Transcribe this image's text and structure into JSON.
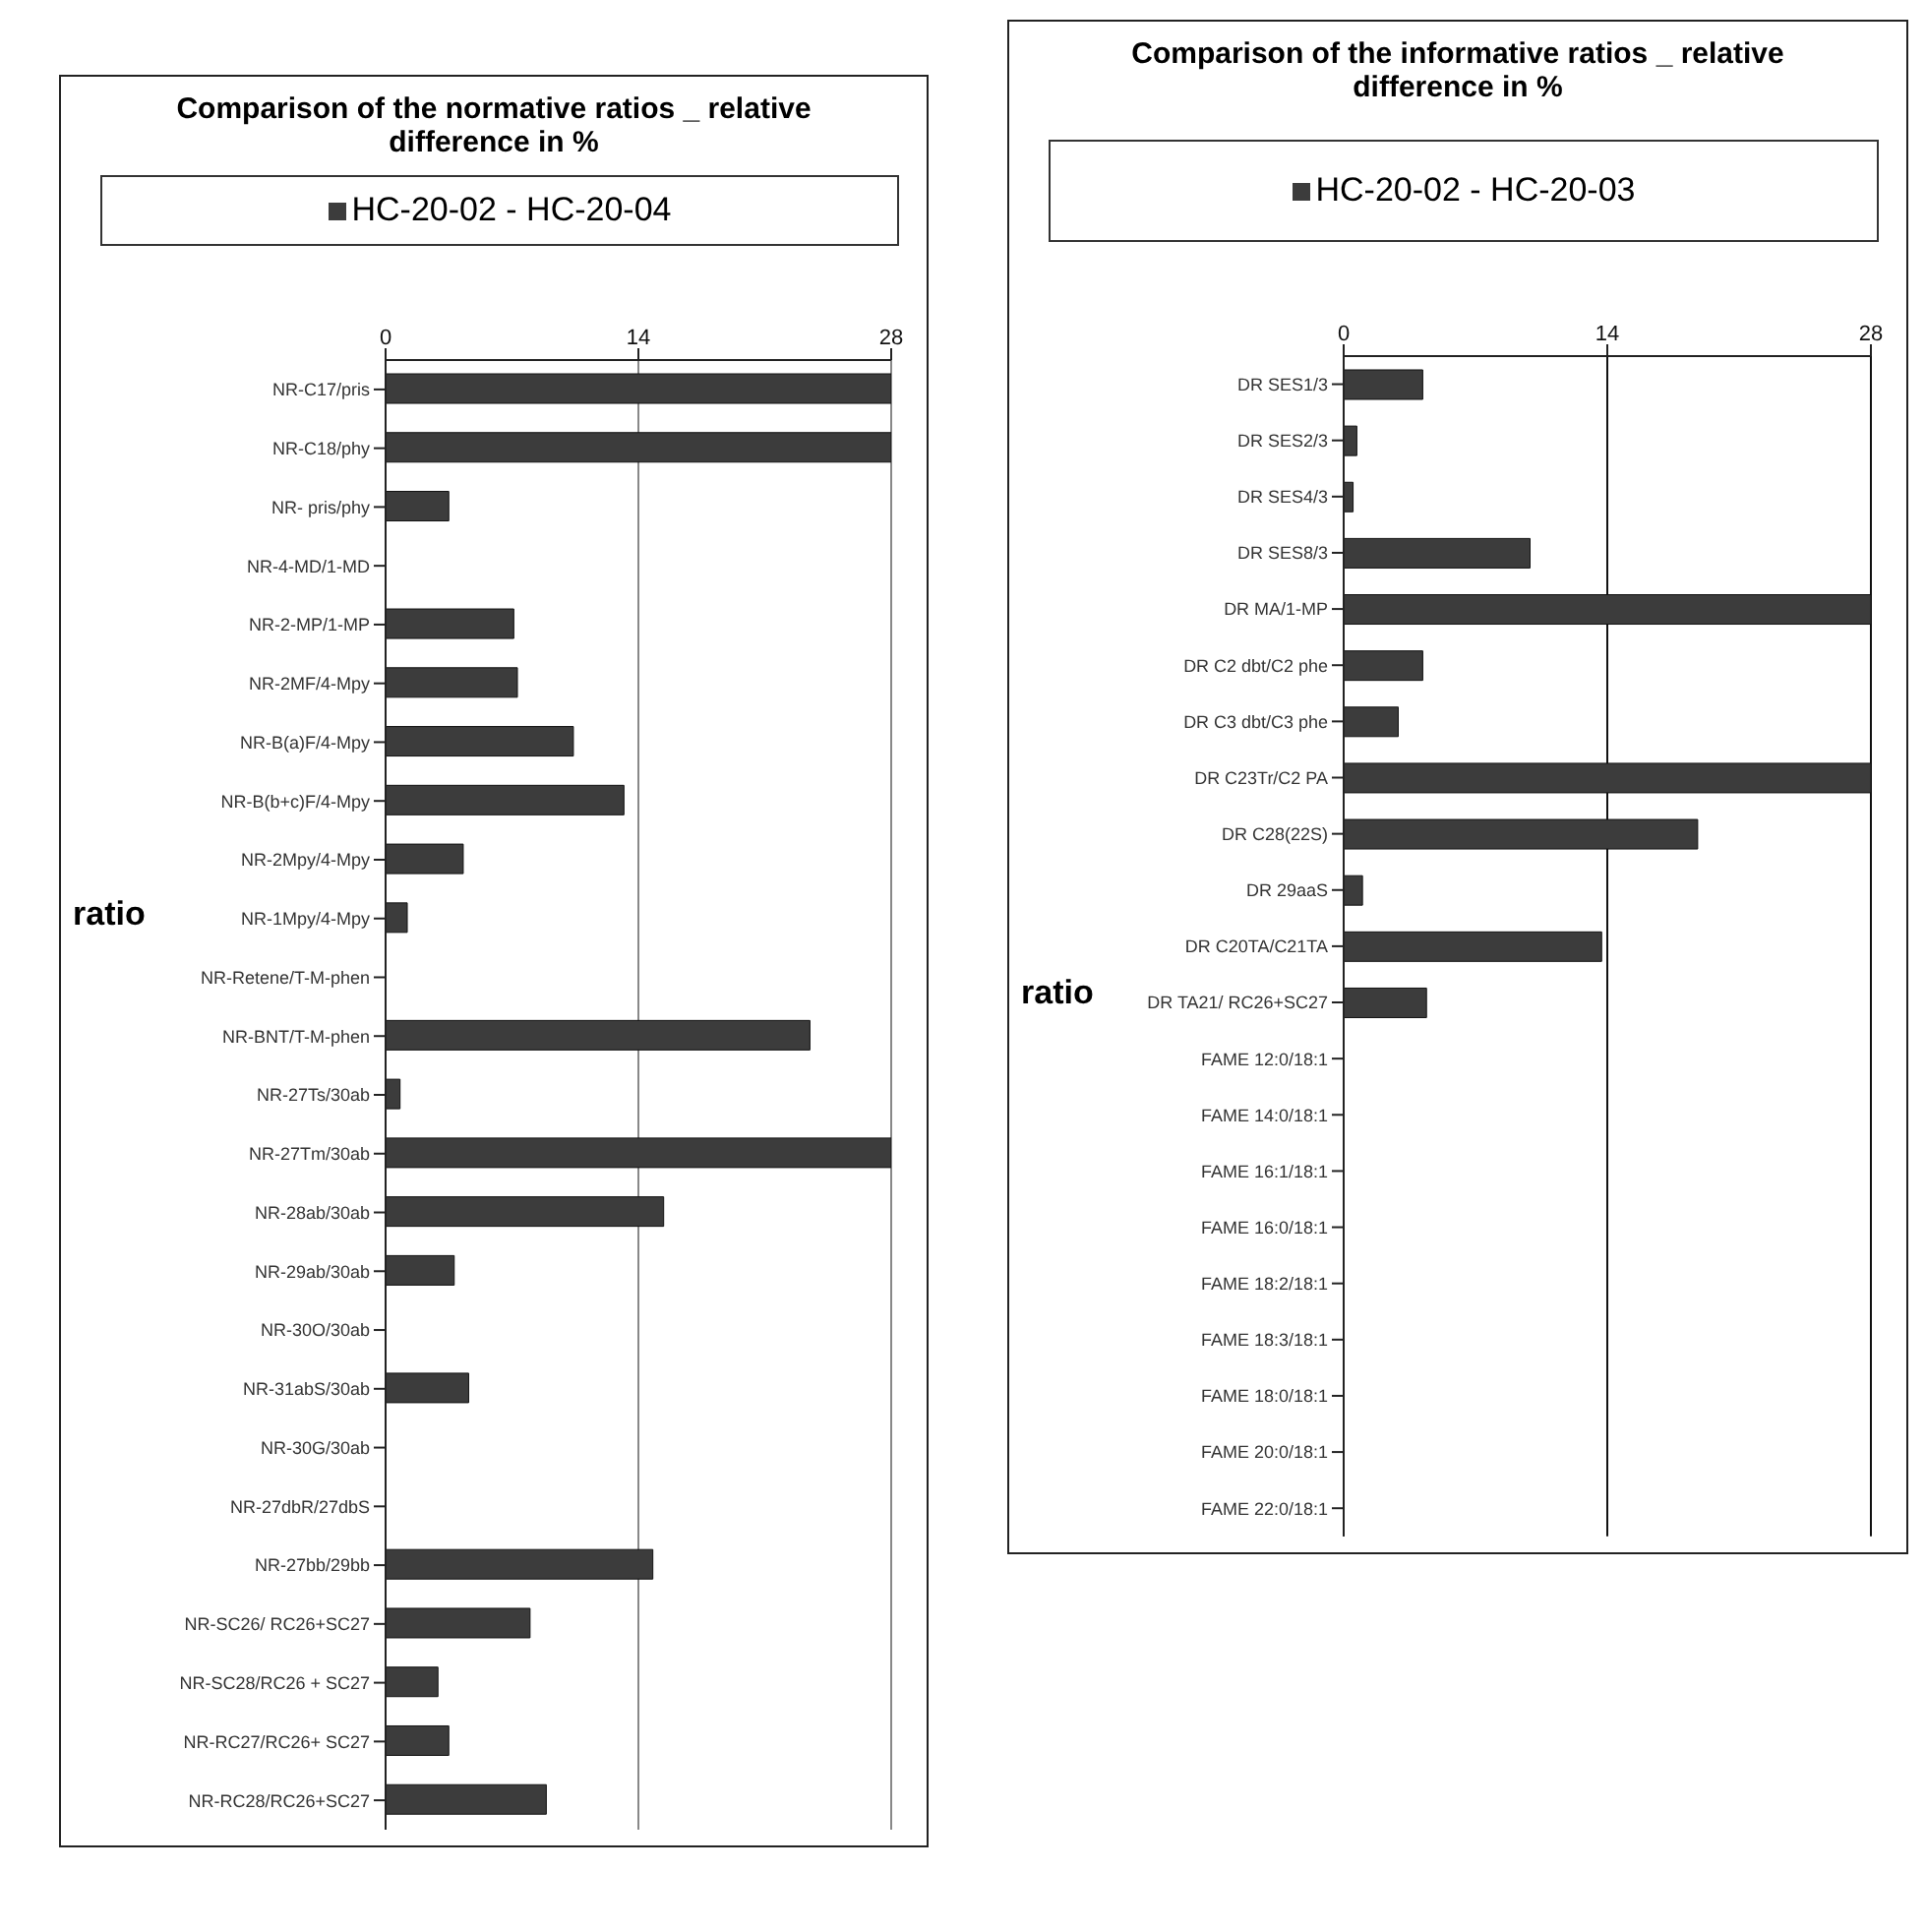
{
  "chart_data": [
    {
      "type": "bar",
      "orientation": "horizontal",
      "title": "Comparison of the normative ratios _ relative difference in %",
      "ylabel": "ratio",
      "categories": [
        "NR-C17/pris",
        "NR-C18/phy",
        "NR- pris/phy",
        "NR-4-MD/1-MD",
        "NR-2-MP/1-MP",
        "NR-2MF/4-Mpy",
        "NR-B(a)F/4-Mpy",
        "NR-B(b+c)F/4-Mpy",
        "NR-2Mpy/4-Mpy",
        "NR-1Mpy/4-Mpy",
        "NR-Retene/T-M-phen",
        "NR-BNT/T-M-phen",
        "NR-27Ts/30ab",
        "NR-27Tm/30ab",
        "NR-28ab/30ab",
        "NR-29ab/30ab",
        "NR-30O/30ab",
        "NR-31abS/30ab",
        "NR-30G/30ab",
        "NR-27dbR/27dbS",
        "NR-27bb/29bb",
        "NR-SC26/ RC26+SC27",
        "NR-SC28/RC26 + SC27",
        "NR-RC27/RC26+ SC27",
        "NR-RC28/RC26+SC27"
      ],
      "series": [
        {
          "name": "HC-20-02 - HC-20-04",
          "color": "#3c3c3c",
          "values": [
            28,
            28,
            3.5,
            0,
            7.1,
            7.3,
            10.4,
            13.2,
            4.3,
            1.2,
            0,
            23.5,
            0.8,
            28,
            15.4,
            3.8,
            0,
            4.6,
            0,
            0,
            14.8,
            8.0,
            2.9,
            3.5,
            8.9
          ]
        }
      ],
      "xlim": [
        0,
        28
      ],
      "xticks": [
        0,
        14,
        28
      ],
      "grid": "x",
      "legend": "top"
    },
    {
      "type": "bar",
      "orientation": "horizontal",
      "title": "Comparison of the informative ratios _ relative difference in %",
      "ylabel": "ratio",
      "categories": [
        "DR SES1/3",
        "DR SES2/3",
        "DR SES4/3",
        "DR SES8/3",
        "DR MA/1-MP",
        "DR C2 dbt/C2 phe",
        "DR C3 dbt/C3 phe",
        "DR C23Tr/C2 PA",
        "DR C28(22S)",
        "DR 29aaS",
        "DR C20TA/C21TA",
        "DR TA21/ RC26+SC27",
        "FAME 12:0/18:1",
        "FAME 14:0/18:1",
        "FAME 16:1/18:1",
        "FAME 16:0/18:1",
        "FAME 18:2/18:1",
        "FAME 18:3/18:1",
        "FAME 18:0/18:1",
        "FAME 20:0/18:1",
        "FAME 22:0/18:1"
      ],
      "series": [
        {
          "name": "HC-20-02 - HC-20-03",
          "color": "#3c3c3c",
          "values": [
            4.2,
            0.7,
            0.5,
            9.9,
            28,
            4.2,
            2.9,
            28,
            18.8,
            1.0,
            13.7,
            4.4,
            0,
            0,
            0,
            0,
            0,
            0,
            0,
            0,
            0
          ]
        }
      ],
      "xlim": [
        0,
        28
      ],
      "xticks": [
        0,
        14,
        28
      ],
      "grid": "x",
      "legend": "top"
    }
  ]
}
